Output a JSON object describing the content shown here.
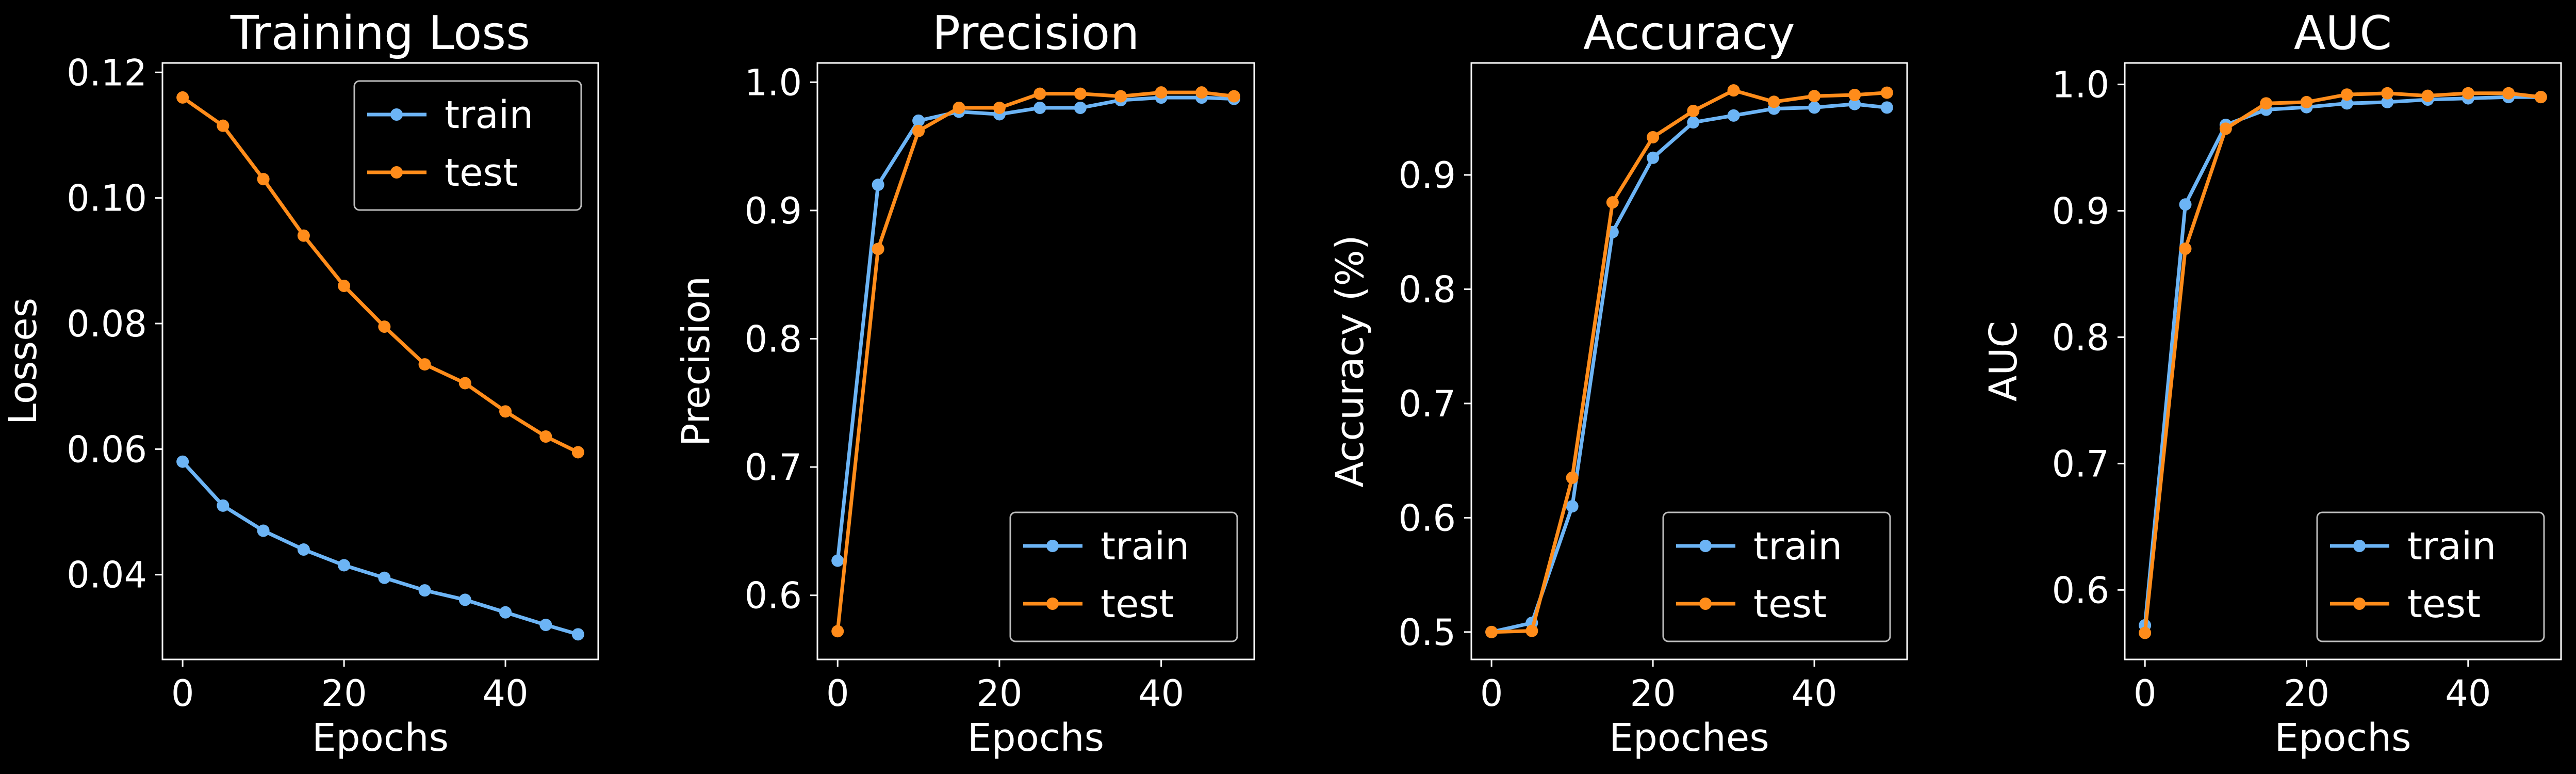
{
  "chart_data": [
    {
      "type": "line",
      "title": "Training Loss",
      "xlabel": "Epochs",
      "ylabel": "Losses",
      "x": [
        0,
        5,
        10,
        15,
        20,
        25,
        30,
        35,
        40,
        45,
        49
      ],
      "xlim": [
        -2.5,
        51.5
      ],
      "ylim": [
        0.0265,
        0.1215
      ],
      "xticks": [
        0,
        20,
        40
      ],
      "xtick_labels": [
        "0",
        "20",
        "40"
      ],
      "yticks": [
        0.04,
        0.06,
        0.08,
        0.1,
        0.12
      ],
      "ytick_labels": [
        "0.04",
        "0.06",
        "0.08",
        "0.10",
        "0.12"
      ],
      "legend_position": "top-right",
      "grid": false,
      "series": [
        {
          "name": "train",
          "color": "#6cb4f5",
          "values": [
            0.058,
            0.051,
            0.047,
            0.044,
            0.0415,
            0.0395,
            0.0375,
            0.036,
            0.034,
            0.032,
            0.0305
          ]
        },
        {
          "name": "test",
          "color": "#ff8c1a",
          "values": [
            0.116,
            0.1115,
            0.103,
            0.094,
            0.086,
            0.0795,
            0.0735,
            0.0705,
            0.066,
            0.062,
            0.0595
          ]
        }
      ]
    },
    {
      "type": "line",
      "title": "Precision",
      "xlabel": "Epochs",
      "ylabel": "Precision",
      "x": [
        0,
        5,
        10,
        15,
        20,
        25,
        30,
        35,
        40,
        45,
        49
      ],
      "xlim": [
        -2.5,
        51.5
      ],
      "ylim": [
        0.55,
        1.015
      ],
      "xticks": [
        0,
        20,
        40
      ],
      "xtick_labels": [
        "0",
        "20",
        "40"
      ],
      "yticks": [
        0.6,
        0.7,
        0.8,
        0.9,
        1.0
      ],
      "ytick_labels": [
        "0.6",
        "0.7",
        "0.8",
        "0.9",
        "1.0"
      ],
      "legend_position": "bottom-right",
      "grid": false,
      "series": [
        {
          "name": "train",
          "color": "#6cb4f5",
          "values": [
            0.627,
            0.92,
            0.97,
            0.977,
            0.975,
            0.98,
            0.98,
            0.986,
            0.988,
            0.988,
            0.987
          ]
        },
        {
          "name": "test",
          "color": "#ff8c1a",
          "values": [
            0.572,
            0.87,
            0.962,
            0.98,
            0.98,
            0.991,
            0.991,
            0.989,
            0.992,
            0.992,
            0.989
          ]
        }
      ]
    },
    {
      "type": "line",
      "title": "Accuracy",
      "xlabel": "Epoches",
      "ylabel": "Accuracy (%)",
      "x": [
        0,
        5,
        10,
        15,
        20,
        25,
        30,
        35,
        40,
        45,
        49
      ],
      "xlim": [
        -2.5,
        51.5
      ],
      "ylim": [
        0.476,
        0.998
      ],
      "xticks": [
        0,
        20,
        40
      ],
      "xtick_labels": [
        "0",
        "20",
        "40"
      ],
      "yticks": [
        0.5,
        0.6,
        0.7,
        0.8,
        0.9
      ],
      "ytick_labels": [
        "0.5",
        "0.6",
        "0.7",
        "0.8",
        "0.9"
      ],
      "legend_position": "bottom-right",
      "grid": false,
      "series": [
        {
          "name": "train",
          "color": "#6cb4f5",
          "values": [
            0.5,
            0.508,
            0.61,
            0.85,
            0.915,
            0.946,
            0.952,
            0.958,
            0.959,
            0.962,
            0.959
          ]
        },
        {
          "name": "test",
          "color": "#ff8c1a",
          "values": [
            0.5,
            0.501,
            0.635,
            0.876,
            0.933,
            0.956,
            0.974,
            0.964,
            0.969,
            0.97,
            0.972
          ]
        }
      ]
    },
    {
      "type": "line",
      "title": "AUC",
      "xlabel": "Epochs",
      "ylabel": "AUC",
      "x": [
        0,
        5,
        10,
        15,
        20,
        25,
        30,
        35,
        40,
        45,
        49
      ],
      "xlim": [
        -2.5,
        51.5
      ],
      "ylim": [
        0.545,
        1.017
      ],
      "xticks": [
        0,
        20,
        40
      ],
      "xtick_labels": [
        "0",
        "20",
        "40"
      ],
      "yticks": [
        0.6,
        0.7,
        0.8,
        0.9,
        1.0
      ],
      "ytick_labels": [
        "0.6",
        "0.7",
        "0.8",
        "0.9",
        "1.0"
      ],
      "legend_position": "bottom-right",
      "grid": false,
      "series": [
        {
          "name": "train",
          "color": "#6cb4f5",
          "values": [
            0.572,
            0.905,
            0.968,
            0.98,
            0.982,
            0.985,
            0.986,
            0.988,
            0.989,
            0.99,
            0.99
          ]
        },
        {
          "name": "test",
          "color": "#ff8c1a",
          "values": [
            0.566,
            0.87,
            0.965,
            0.985,
            0.986,
            0.992,
            0.993,
            0.991,
            0.993,
            0.993,
            0.99
          ]
        }
      ]
    }
  ]
}
